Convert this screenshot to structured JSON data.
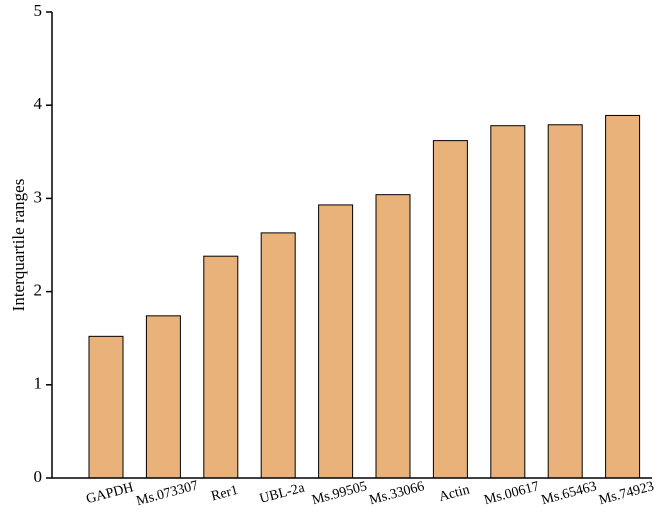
{
  "chart_data": {
    "type": "bar",
    "y_label": "Interquartile ranges",
    "categories": [
      "GAPDH",
      "Ms.073307",
      "Rer1",
      "UBL-2a",
      "Ms.99505",
      "Ms.33066",
      "Actin",
      "Ms.00617",
      "Ms.65463",
      "Ms.74923"
    ],
    "values": [
      1.52,
      1.74,
      2.38,
      2.63,
      2.93,
      3.04,
      3.62,
      3.78,
      3.79,
      3.89
    ],
    "color": "#e8b27a",
    "ylim": [
      0,
      5
    ],
    "yticks": [
      0,
      1,
      2,
      3,
      4,
      5
    ]
  }
}
